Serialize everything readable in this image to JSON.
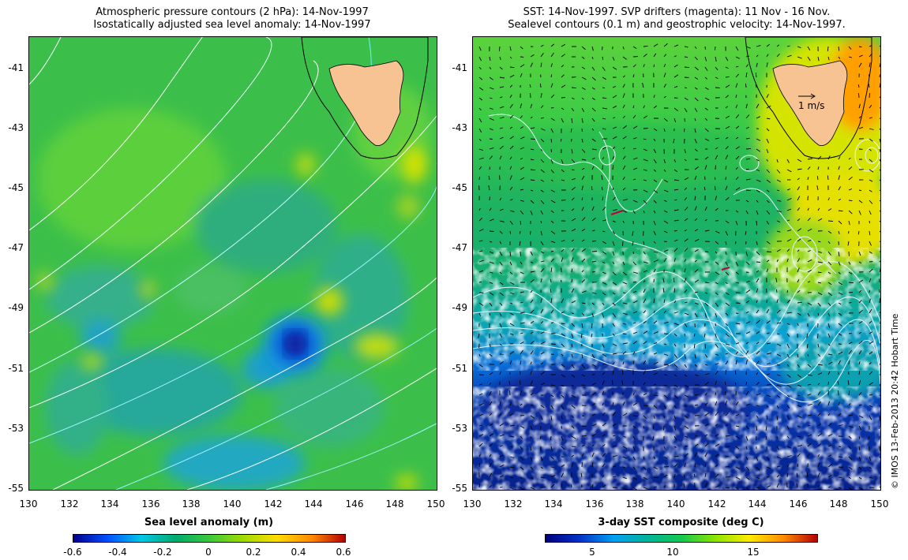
{
  "left_panel": {
    "title_line1": "Atmospheric pressure contours (2 hPa): 14-Nov-1997",
    "title_line2": "Isostatically adjusted sea level anomaly: 14-Nov-1997",
    "colorbar_title": "Sea level anomaly (m)",
    "colorbar_ticks": [
      "-0.6",
      "-0.4",
      "-0.2",
      "0",
      "0.2",
      "0.4",
      "0.6"
    ]
  },
  "right_panel": {
    "title_line1": "SST: 14-Nov-1997. SVP drifters (magenta): 11 Nov - 16 Nov.",
    "title_line2": "Sealevel contours (0.1 m) and geostrophic velocity: 14-Nov-1997.",
    "velocity_scale_label": "1 m/s",
    "colorbar_title": "3-day SST composite (deg C)",
    "colorbar_ticks": [
      "5",
      "10",
      "15"
    ]
  },
  "axes": {
    "y_ticks": [
      "-41",
      "-43",
      "-45",
      "-47",
      "-49",
      "-51",
      "-53",
      "-55"
    ],
    "x_ticks": [
      "130",
      "132",
      "134",
      "136",
      "138",
      "140",
      "142",
      "144",
      "146",
      "148",
      "150"
    ]
  },
  "credit": "© IMOS 13-Feb-2013 20:42 Hobart Time",
  "colors": {
    "land": "#f7c393",
    "sla_scale": [
      "#00008c",
      "#0050ff",
      "#00c8e6",
      "#00aa6e",
      "#3cc83c",
      "#a0dc00",
      "#ffdc00",
      "#ff8c00",
      "#b40000"
    ],
    "sst_scale": [
      "#00007d",
      "#0032c8",
      "#00a0f0",
      "#00b49b",
      "#14c850",
      "#8ce600",
      "#ffeb00",
      "#ff8c00",
      "#b40000"
    ]
  }
}
